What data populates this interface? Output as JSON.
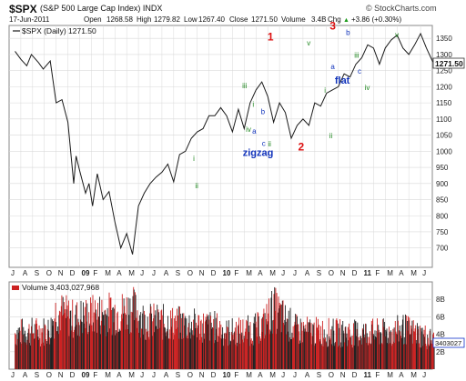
{
  "header": {
    "symbol": "$SPX",
    "name": "(S&P 500 Large Cap Index) INDX",
    "brand": "© StockCharts.com",
    "date": "17-Jun-2011",
    "open_label": "Open",
    "open": "1268.58",
    "high_label": "High",
    "high": "1279.82",
    "low_label": "Low",
    "low": "1267.40",
    "close_label": "Close",
    "close": "1271.50",
    "volume_label": "Volume",
    "volume": "3.4B",
    "chg_label": "Chg",
    "chg": "+3.86 (+0.30%)",
    "arrow": "▲"
  },
  "colors": {
    "price_line": "#1a1a1a",
    "wave_red": "#dd1111",
    "wave_blue": "#1133bb",
    "wave_green": "#228822",
    "volume_up": "#cc2222",
    "volume_down": "#222222",
    "grid": "#d9d9d9",
    "frame": "#888888",
    "volume_marker": "#1133cc"
  },
  "chart_data": [
    {
      "type": "line",
      "legend": "$SPX (Daily) 1271.50",
      "y_ticks": [
        700,
        750,
        800,
        850,
        900,
        950,
        1000,
        1050,
        1100,
        1150,
        1200,
        1250,
        1300,
        1350
      ],
      "ylim": [
        640,
        1390
      ],
      "x_tick_labels": [
        "J",
        "A",
        "S",
        "O",
        "N",
        "D",
        "09",
        "F",
        "M",
        "A",
        "M",
        "J",
        "J",
        "A",
        "S",
        "O",
        "N",
        "D",
        "10",
        "F",
        "M",
        "A",
        "M",
        "J",
        "J",
        "A",
        "S",
        "O",
        "N",
        "D",
        "11",
        "F",
        "M",
        "A",
        "M",
        "J"
      ],
      "x_bold_labels": [
        "09",
        "10",
        "11"
      ],
      "last_value_label": "1271.50",
      "last_value": 1271.5,
      "series": [
        {
          "x": [
            0,
            0.5,
            1,
            1.4,
            2,
            2.4,
            3,
            3.5,
            4,
            4.5,
            5,
            5.2,
            5.5,
            6,
            6.3,
            6.6,
            7,
            7.5,
            8,
            8.5,
            9,
            9.5,
            10,
            10.5,
            11,
            11.5,
            12,
            12.5,
            13,
            13.5,
            14,
            14.5,
            15,
            15.5,
            16,
            16.5,
            17,
            17.5,
            18,
            18.5,
            19,
            19.5,
            20,
            20.5,
            21,
            21.5,
            22,
            22.5,
            23,
            23.5,
            24,
            24.5,
            25,
            25.5,
            26,
            26.5,
            27,
            27.5,
            28,
            28.5,
            29,
            29.5,
            30,
            30.5,
            31,
            31.5,
            32,
            32.5,
            33,
            33.5,
            34,
            34.5,
            35,
            35.5,
            35.7
          ],
          "values": [
            1310,
            1285,
            1265,
            1300,
            1275,
            1255,
            1280,
            1150,
            1160,
            1090,
            900,
            985,
            940,
            870,
            900,
            830,
            930,
            850,
            875,
            780,
            700,
            745,
            680,
            830,
            870,
            900,
            920,
            935,
            960,
            905,
            990,
            1000,
            1040,
            1060,
            1070,
            1110,
            1110,
            1135,
            1110,
            1060,
            1130,
            1070,
            1150,
            1190,
            1215,
            1170,
            1090,
            1150,
            1120,
            1040,
            1080,
            1100,
            1080,
            1150,
            1140,
            1180,
            1190,
            1200,
            1240,
            1230,
            1270,
            1290,
            1330,
            1320,
            1270,
            1320,
            1345,
            1360,
            1320,
            1300,
            1330,
            1365,
            1320,
            1280,
            1271.5
          ]
        }
      ]
    },
    {
      "type": "bar",
      "legend": "Volume 3,403,027,968",
      "unit": "billions of shares",
      "y_ticks_labels": [
        "2B",
        "4B",
        "6B",
        "8B"
      ],
      "y_ticks": [
        2,
        4,
        6,
        8
      ],
      "ylim": [
        0,
        10
      ],
      "last_value_label": "3403027",
      "x_tick_labels": [
        "J",
        "A",
        "S",
        "O",
        "N",
        "D",
        "09",
        "F",
        "M",
        "A",
        "M",
        "J",
        "J",
        "A",
        "S",
        "O",
        "N",
        "D",
        "10",
        "F",
        "M",
        "A",
        "M",
        "J",
        "J",
        "A",
        "S",
        "O",
        "N",
        "D",
        "11",
        "F",
        "M",
        "A",
        "M",
        "J"
      ],
      "x_bold_labels": [
        "09",
        "10",
        "11"
      ],
      "profile": {
        "x": [
          0,
          3,
          3.5,
          5,
          7,
          9,
          10,
          11,
          14,
          17,
          18,
          20,
          21,
          22,
          23,
          24,
          26,
          29,
          30,
          32,
          33,
          35,
          35.7
        ],
        "values": [
          4.5,
          4.8,
          7.2,
          6.2,
          6.8,
          7.0,
          7.5,
          6.0,
          5.6,
          5.2,
          4.5,
          4.8,
          5.2,
          7.5,
          6.0,
          4.8,
          4.6,
          4.4,
          4.5,
          4.5,
          5.0,
          4.0,
          3.4
        ]
      }
    }
  ],
  "annotations": [
    {
      "text": "1",
      "x": 27.3,
      "y": 1343,
      "color": "red",
      "size": "big"
    },
    {
      "text": "2",
      "x": 30.5,
      "y": 1003,
      "color": "red",
      "size": "big"
    },
    {
      "text": "3",
      "x": 33.8,
      "y": 1378,
      "color": "red",
      "size": "big"
    },
    {
      "text": "a",
      "x": 25.6,
      "y": 1055,
      "color": "blue",
      "size": "small"
    },
    {
      "text": "b",
      "x": 26.5,
      "y": 1115,
      "color": "blue",
      "size": "small"
    },
    {
      "text": "c",
      "x": 26.6,
      "y": 1016,
      "color": "blue",
      "size": "small"
    },
    {
      "text": "zigzag",
      "x": 26.0,
      "y": 985,
      "color": "blue",
      "size": "mid"
    },
    {
      "text": "a",
      "x": 33.8,
      "y": 1255,
      "color": "blue",
      "size": "small"
    },
    {
      "text": "b",
      "x": 35.4,
      "y": 1360,
      "color": "blue",
      "size": "small"
    },
    {
      "text": "c",
      "x": 36.6,
      "y": 1240,
      "color": "blue",
      "size": "small"
    },
    {
      "text": "flat",
      "x": 34.8,
      "y": 1210,
      "color": "blue",
      "size": "mid"
    },
    {
      "text": "i",
      "x": 25.5,
      "y": 1137,
      "color": "green",
      "size": "small"
    },
    {
      "text": "ii",
      "x": 27.2,
      "y": 1015,
      "color": "green",
      "size": "small"
    },
    {
      "text": "i",
      "x": 19.3,
      "y": 970,
      "color": "green",
      "size": "small"
    },
    {
      "text": "ii",
      "x": 19.6,
      "y": 885,
      "color": "green",
      "size": "small"
    },
    {
      "text": "iii",
      "x": 24.6,
      "y": 1195,
      "color": "green",
      "size": "small"
    },
    {
      "text": "iv",
      "x": 25.0,
      "y": 1060,
      "color": "green",
      "size": "small"
    },
    {
      "text": "v",
      "x": 31.3,
      "y": 1328,
      "color": "green",
      "size": "small"
    },
    {
      "text": "i",
      "x": 33.0,
      "y": 1182,
      "color": "green",
      "size": "small"
    },
    {
      "text": "ii",
      "x": 33.6,
      "y": 1040,
      "color": "green",
      "size": "small"
    },
    {
      "text": "iii",
      "x": 36.3,
      "y": 1290,
      "color": "green",
      "size": "small"
    },
    {
      "text": "iv",
      "x": 37.4,
      "y": 1190,
      "color": "green",
      "size": "small"
    },
    {
      "text": "v",
      "x": 40.5,
      "y": 1354,
      "color": "green",
      "size": "small"
    }
  ]
}
